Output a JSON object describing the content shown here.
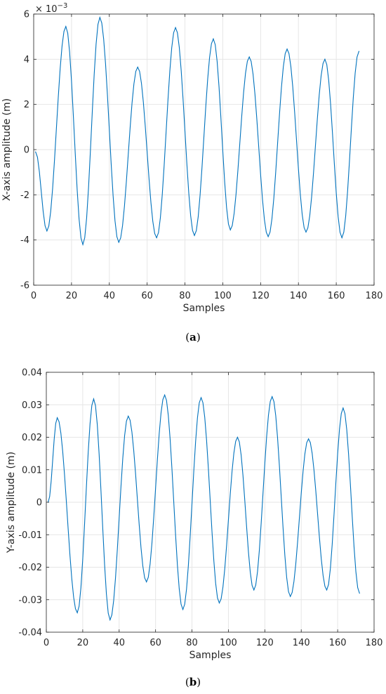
{
  "chart_data": [
    {
      "type": "line",
      "caption_letter": "a",
      "xlabel": "Samples",
      "ylabel": "X-axis amplitude (m)",
      "exponent_base": "× 10",
      "exponent_power": "−3",
      "xlim": [
        0,
        180
      ],
      "ylim": [
        -6,
        6
      ],
      "xticks": [
        0,
        20,
        40,
        60,
        80,
        100,
        120,
        140,
        160,
        180
      ],
      "yticks": [
        -6,
        -4,
        -2,
        0,
        2,
        4,
        6
      ],
      "grid": true,
      "color": "#0072BD",
      "series": [
        {
          "x": [
            1,
            7,
            17,
            26,
            35,
            45,
            55,
            65,
            75,
            85,
            95,
            104,
            114,
            124,
            134,
            144,
            154,
            163,
            172
          ],
          "y": [
            -0.1,
            -3.6,
            5.45,
            -4.2,
            5.85,
            -4.1,
            3.65,
            -3.9,
            5.4,
            -3.8,
            4.9,
            -3.55,
            4.1,
            -3.85,
            4.45,
            -3.65,
            4.0,
            -3.9,
            4.35
          ]
        }
      ]
    },
    {
      "type": "line",
      "caption_letter": "b",
      "xlabel": "Samples",
      "ylabel": "Y-axis amplitude (m)",
      "xlim": [
        0,
        180
      ],
      "ylim": [
        -0.04,
        0.04
      ],
      "xticks": [
        0,
        20,
        40,
        60,
        80,
        100,
        120,
        140,
        160,
        180
      ],
      "yticks": [
        -0.04,
        -0.03,
        -0.02,
        -0.01,
        0,
        0.01,
        0.02,
        0.03,
        0.04
      ],
      "ytick_labels": [
        "-0.04",
        "-0.03",
        "-0.02",
        "-0.01",
        "0",
        "0.01",
        "0.02",
        "0.03",
        "0.04"
      ],
      "grid": true,
      "color": "#0072BD",
      "series": [
        {
          "x": [
            1,
            6,
            17,
            26,
            35,
            45,
            55,
            65,
            75,
            85,
            95,
            105,
            114,
            124,
            134,
            144,
            154,
            163,
            172
          ],
          "y": [
            0.0,
            0.026,
            -0.034,
            0.0318,
            -0.0362,
            0.0265,
            -0.0245,
            0.033,
            -0.033,
            0.0322,
            -0.031,
            0.02,
            -0.027,
            0.0325,
            -0.029,
            0.0195,
            -0.027,
            0.029,
            -0.028
          ]
        }
      ]
    }
  ]
}
